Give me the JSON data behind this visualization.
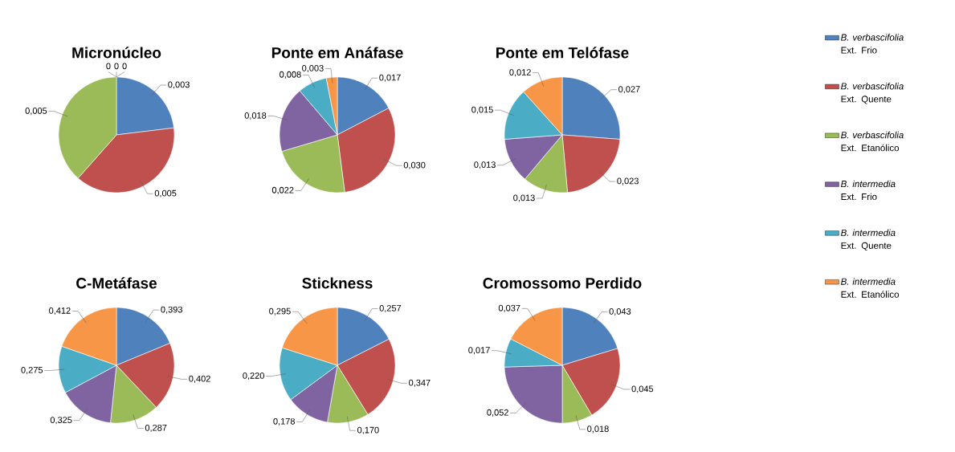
{
  "chart_data": [
    {
      "type": "pie",
      "title": "Micronúcleo",
      "legend": "right",
      "categories": [
        "*B. verbascifolia* Ext. Frio",
        "*B. verbascifolia* Ext. Quente",
        "*B. verbascifolia* Ext. Etanólico",
        "*B. intermedia* Ext. Frio",
        "*B. intermedia* Ext. Quente",
        "*B. intermedia* Ext. Etanólico"
      ],
      "values": [
        0.003,
        0.005,
        0.005,
        0,
        0,
        0
      ],
      "value_labels": [
        "0,003",
        "0,005",
        "0,005",
        "0",
        "0",
        "0"
      ],
      "colors": [
        "#4f81bd",
        "#c0504d",
        "#9bbb59",
        "#8064a2",
        "#4bacc6",
        "#f79646"
      ]
    },
    {
      "type": "pie",
      "title": "Ponte em Anáfase",
      "values": [
        0.017,
        0.03,
        0.022,
        0.018,
        0.008,
        0.003
      ],
      "value_labels": [
        "0,017",
        "0,030",
        "0,022",
        "0,018",
        "0,008",
        "0,003"
      ],
      "colors": [
        "#4f81bd",
        "#c0504d",
        "#9bbb59",
        "#8064a2",
        "#4bacc6",
        "#f79646"
      ]
    },
    {
      "type": "pie",
      "title": "Ponte em Telófase",
      "values": [
        0.027,
        0.023,
        0.013,
        0.013,
        0.015,
        0.012
      ],
      "value_labels": [
        "0,027",
        "0,023",
        "0,013",
        "0,013",
        "0,015",
        "0,012"
      ],
      "colors": [
        "#4f81bd",
        "#c0504d",
        "#9bbb59",
        "#8064a2",
        "#4bacc6",
        "#f79646"
      ]
    },
    {
      "type": "pie",
      "title": "C-Metáfase",
      "values": [
        0.393,
        0.402,
        0.287,
        0.325,
        0.275,
        0.412
      ],
      "value_labels": [
        "0,393",
        "0,402",
        "0,287",
        "0,325",
        "0,275",
        "0,412"
      ],
      "colors": [
        "#4f81bd",
        "#c0504d",
        "#9bbb59",
        "#8064a2",
        "#4bacc6",
        "#f79646"
      ]
    },
    {
      "type": "pie",
      "title": "Stickness",
      "values": [
        0.257,
        0.347,
        0.17,
        0.178,
        0.22,
        0.295
      ],
      "value_labels": [
        "0,257",
        "0,347",
        "0,170",
        "0,178",
        "0,220",
        "0,295"
      ],
      "colors": [
        "#4f81bd",
        "#c0504d",
        "#9bbb59",
        "#8064a2",
        "#4bacc6",
        "#f79646"
      ]
    },
    {
      "type": "pie",
      "title": "Cromossomo Perdido",
      "values": [
        0.043,
        0.045,
        0.018,
        0.052,
        0.017,
        0.037
      ],
      "value_labels": [
        "0,043",
        "0,045",
        "0,018",
        "0,052",
        "0,017",
        "0,037"
      ],
      "colors": [
        "#4f81bd",
        "#c0504d",
        "#9bbb59",
        "#8064a2",
        "#4bacc6",
        "#f79646"
      ]
    }
  ]
}
